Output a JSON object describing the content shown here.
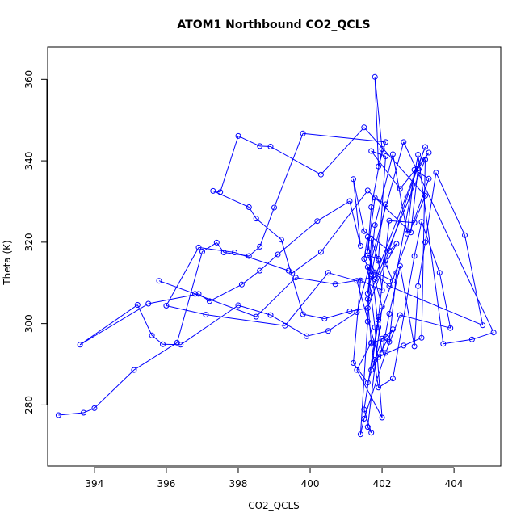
{
  "chart_data": {
    "type": "scatter",
    "title": "ATOM1 Northbound CO2_QCLS",
    "xlabel": "CO2_QCLS",
    "ylabel": "Theta (K)",
    "xlim": [
      392.7,
      405.3
    ],
    "ylim": [
      265,
      368
    ],
    "xticks": [
      "394",
      "396",
      "398",
      "400",
      "402",
      "404"
    ],
    "yticks": [
      "280",
      "300",
      "320",
      "340",
      "360"
    ],
    "style": {
      "color": "#0000ff",
      "marker": "open-circle",
      "connected": true,
      "grid": false,
      "legend": false
    },
    "series": [
      {
        "x": [
          393.0,
          393.7,
          394.0,
          395.1,
          396.3,
          397.0,
          397.4,
          397.6,
          398.3,
          398.6,
          399.0,
          399.8,
          402.1,
          401.9,
          401.8,
          402.0,
          401.7,
          401.6,
          401.8,
          402.1,
          401.7,
          401.5,
          401.6,
          401.9,
          402.0,
          402.2,
          402.5,
          402.9,
          403.0,
          403.2,
          403.5,
          404.3,
          404.8,
          402.2,
          401.6,
          401.8,
          402.0,
          401.3,
          401.7,
          401.9,
          402.3,
          402.9,
          403.1,
          403.6,
          403.9,
          402.5,
          402.1,
          401.5,
          401.4,
          401.6,
          401.7,
          401.9,
          402.0,
          401.4,
          401.2,
          401.6,
          401.8,
          402.0,
          402.2,
          402.4,
          403.0,
          403.7,
          404.5,
          405.1,
          402.6,
          401.3,
          400.5,
          399.9,
          398.9,
          398.0,
          396.4,
          395.9,
          395.6,
          395.2,
          393.6,
          395.5,
          396.9,
          397.2,
          398.1,
          398.6,
          399.1,
          400.2,
          401.1,
          401.4,
          401.2,
          401.5,
          402.2,
          402.4,
          402.1,
          402.3,
          401.8,
          401.6,
          401.9,
          402.1,
          401.7,
          402.5,
          403.3,
          403.0,
          402.8,
          401.6,
          400.3,
          399.5,
          399.4,
          397.9,
          396.9,
          396.0,
          397.1,
          399.3,
          400.5,
          401.3,
          401.9,
          402.6,
          403.1,
          403.2,
          401.6,
          401.7,
          402.1,
          402.3,
          401.7,
          401.9,
          403.3,
          402.9,
          402.7,
          402.3,
          401.8,
          401.6,
          401.7,
          401.8,
          402.0,
          401.6,
          401.7,
          401.5,
          401.9,
          402.2,
          402.9,
          403.2,
          401.5,
          400.3,
          398.9,
          398.6,
          398.0,
          397.5,
          397.3,
          398.3,
          398.5,
          399.2,
          399.8,
          400.4,
          401.1,
          401.6,
          402.1,
          402.7,
          403.2,
          401.8,
          400.7,
          399.6,
          398.5,
          396.8,
          395.8
        ],
        "y": [
          277.5,
          278.1,
          279.2,
          288.6,
          295.3,
          317.7,
          319.9,
          317.5,
          316.6,
          318.9,
          328.5,
          346.7,
          344.6,
          338.6,
          360.6,
          342.9,
          328.6,
          317.7,
          330.9,
          329.3,
          312.1,
          315.9,
          321.3,
          299.1,
          292.9,
          302.4,
          314.2,
          294.4,
          309.2,
          320.0,
          337.1,
          321.7,
          299.6,
          309.2,
          313.9,
          299.1,
          276.9,
          288.6,
          295.3,
          284.3,
          286.5,
          316.6,
          325.0,
          312.5,
          298.9,
          302.1,
          292.8,
          276.6,
          272.8,
          300.5,
          320.9,
          315.4,
          308.2,
          310.6,
          290.3,
          285.5,
          291.1,
          296.3,
          295.5,
          312.5,
          341.5,
          295.0,
          296.1,
          297.8,
          344.6,
          302.8,
          298.2,
          296.9,
          302.1,
          304.5,
          294.8,
          294.9,
          297.1,
          304.6,
          294.8,
          304.9,
          307.3,
          305.5,
          309.6,
          313.0,
          317.0,
          325.2,
          330.1,
          319.1,
          335.5,
          322.7,
          317.9,
          319.6,
          314.6,
          310.5,
          312.6,
          316.8,
          315.9,
          341.1,
          342.4,
          333.1,
          342.0,
          338.1,
          322.4,
          332.7,
          317.6,
          312.4,
          313.0,
          317.5,
          318.7,
          304.4,
          302.2,
          299.5,
          312.5,
          310.5,
          291.8,
          294.6,
          296.5,
          340.3,
          306.0,
          295.0,
          296.7,
          298.6,
          288.6,
          300.9,
          335.6,
          337.8,
          322.1,
          341.6,
          324.2,
          307.4,
          311.4,
          310.9,
          304.2,
          274.6,
          273.2,
          278.9,
          301.6,
          325.3,
          324.8,
          331.4,
          348.2,
          336.6,
          343.5,
          343.6,
          346.1,
          332.3,
          332.6,
          328.6,
          325.8,
          320.6,
          302.3,
          301.2,
          303.0,
          303.8,
          315.5,
          331.1,
          343.4,
          311.4,
          309.7,
          311.3,
          301.7,
          307.3,
          310.5
        ]
      }
    ]
  }
}
